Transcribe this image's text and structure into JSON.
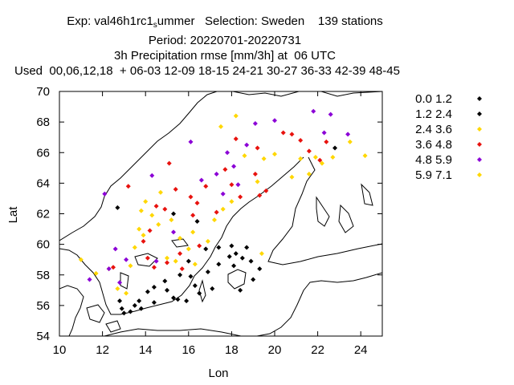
{
  "title": {
    "line1_prefix": "Exp: val46h1rc1",
    "line1_sub": "s",
    "line1_rest": "ummer   Selection: Sweden    139 stations",
    "line2": "Period: 20220701-20220731",
    "line3": "3h Precipitation rmse [mm/3h] at  06 UTC",
    "line4": "Used  00,06,12,18  + 06-03 12-09 18-15 24-21 30-27 36-33 42-39 48-45"
  },
  "chart_data": {
    "type": "scatter",
    "xlabel": "Lon",
    "ylabel": "Lat",
    "xlim": [
      10,
      25
    ],
    "ylim": [
      54,
      70
    ],
    "xticks": [
      10,
      12,
      14,
      16,
      18,
      20,
      22,
      24
    ],
    "yticks": [
      54,
      56,
      58,
      60,
      62,
      64,
      66,
      68,
      70
    ],
    "legend_position": "right",
    "background_map": "coastlines",
    "series": [
      {
        "name": "0.0 1.2",
        "color": "#000000",
        "points": [
          [
            12.7,
            62.4
          ],
          [
            12.8,
            56.3
          ],
          [
            12.9,
            55.8
          ],
          [
            13.0,
            55.5
          ],
          [
            13.3,
            55.6
          ],
          [
            13.5,
            56.0
          ],
          [
            13.7,
            56.3
          ],
          [
            13.8,
            55.8
          ],
          [
            14.1,
            56.9
          ],
          [
            14.4,
            57.2
          ],
          [
            14.4,
            56.2
          ],
          [
            14.9,
            57.6
          ],
          [
            15.0,
            57.0
          ],
          [
            15.3,
            56.5
          ],
          [
            15.5,
            56.4
          ],
          [
            15.6,
            58.0
          ],
          [
            15.9,
            56.3
          ],
          [
            16.0,
            58.9
          ],
          [
            16.1,
            57.9
          ],
          [
            16.3,
            57.3
          ],
          [
            16.5,
            56.8
          ],
          [
            16.8,
            59.7
          ],
          [
            16.9,
            58.2
          ],
          [
            17.1,
            57.1
          ],
          [
            17.4,
            59.8
          ],
          [
            17.4,
            58.7
          ],
          [
            17.9,
            59.2
          ],
          [
            18.0,
            59.9
          ],
          [
            18.1,
            58.6
          ],
          [
            18.2,
            59.4
          ],
          [
            18.4,
            57.0
          ],
          [
            18.5,
            59.1
          ],
          [
            18.7,
            59.8
          ],
          [
            18.9,
            58.9
          ],
          [
            19.0,
            57.7
          ],
          [
            19.3,
            58.4
          ],
          [
            22.8,
            66.3
          ],
          [
            15.3,
            62.0
          ],
          [
            16.4,
            61.5
          ]
        ]
      },
      {
        "name": "1.2 2.4",
        "color": "#000000",
        "points": []
      },
      {
        "name": "2.4 3.6",
        "color": "#ffd700",
        "points": [
          [
            11.0,
            59.0
          ],
          [
            11.7,
            58.1
          ],
          [
            12.3,
            58.4
          ],
          [
            12.7,
            57.1
          ],
          [
            13.1,
            56.8
          ],
          [
            13.3,
            58.6
          ],
          [
            13.5,
            59.8
          ],
          [
            13.7,
            61.0
          ],
          [
            13.8,
            62.2
          ],
          [
            13.9,
            60.6
          ],
          [
            14.0,
            62.8
          ],
          [
            14.3,
            61.9
          ],
          [
            14.6,
            61.3
          ],
          [
            14.7,
            63.4
          ],
          [
            15.0,
            59.1
          ],
          [
            15.2,
            61.6
          ],
          [
            15.4,
            58.9
          ],
          [
            15.6,
            60.4
          ],
          [
            16.0,
            59.7
          ],
          [
            16.2,
            60.8
          ],
          [
            16.3,
            58.7
          ],
          [
            16.9,
            60.2
          ],
          [
            17.2,
            61.6
          ],
          [
            17.6,
            62.3
          ],
          [
            18.0,
            62.8
          ],
          [
            17.5,
            67.7
          ],
          [
            18.2,
            68.4
          ],
          [
            19.4,
            59.4
          ],
          [
            20.0,
            65.9
          ],
          [
            20.8,
            64.4
          ],
          [
            21.2,
            65.6
          ],
          [
            21.6,
            64.6
          ],
          [
            21.9,
            65.7
          ],
          [
            22.2,
            65.3
          ],
          [
            22.7,
            65.7
          ],
          [
            23.5,
            66.7
          ],
          [
            24.2,
            65.8
          ]
        ]
      },
      {
        "name": "3.6 4.8",
        "color": "#e8120e",
        "points": [
          [
            12.5,
            58.5
          ],
          [
            13.2,
            63.8
          ],
          [
            13.9,
            60.2
          ],
          [
            14.1,
            59.1
          ],
          [
            14.2,
            60.9
          ],
          [
            14.4,
            58.5
          ],
          [
            14.5,
            62.5
          ],
          [
            14.9,
            62.3
          ],
          [
            15.0,
            58.8
          ],
          [
            15.1,
            65.3
          ],
          [
            15.4,
            63.6
          ],
          [
            15.6,
            59.4
          ],
          [
            15.7,
            58.4
          ],
          [
            16.1,
            63.1
          ],
          [
            16.2,
            61.9
          ],
          [
            16.4,
            62.7
          ],
          [
            16.5,
            59.9
          ],
          [
            16.8,
            63.8
          ],
          [
            17.3,
            62.1
          ],
          [
            17.7,
            64.9
          ],
          [
            18.0,
            63.9
          ],
          [
            18.2,
            66.9
          ],
          [
            18.4,
            63.1
          ],
          [
            19.1,
            64.6
          ],
          [
            19.2,
            66.3
          ],
          [
            19.3,
            63.2
          ],
          [
            19.6,
            63.5
          ],
          [
            20.4,
            67.3
          ],
          [
            20.8,
            67.2
          ],
          [
            21.2,
            66.8
          ],
          [
            21.6,
            66.1
          ],
          [
            22.1,
            65.5
          ],
          [
            22.4,
            66.7
          ]
        ]
      },
      {
        "name": "4.8 5.9",
        "color": "#8b00d6",
        "points": [
          [
            12.1,
            63.3
          ],
          [
            12.3,
            58.4
          ],
          [
            12.6,
            59.7
          ],
          [
            12.8,
            57.5
          ],
          [
            13.1,
            59.0
          ],
          [
            14.3,
            64.5
          ],
          [
            14.5,
            58.9
          ],
          [
            15.3,
            60.8
          ],
          [
            16.1,
            66.7
          ],
          [
            16.6,
            64.2
          ],
          [
            17.3,
            64.6
          ],
          [
            17.6,
            63.3
          ],
          [
            17.8,
            66.0
          ],
          [
            18.1,
            65.1
          ],
          [
            18.3,
            63.9
          ],
          [
            18.7,
            66.5
          ],
          [
            19.1,
            67.9
          ],
          [
            20.0,
            68.1
          ],
          [
            21.8,
            68.7
          ],
          [
            22.3,
            67.3
          ],
          [
            22.6,
            68.5
          ],
          [
            23.4,
            67.2
          ],
          [
            11.4,
            57.7
          ]
        ]
      },
      {
        "name": "5.9 7.1",
        "color": "#ffd700",
        "points": [
          [
            18.6,
            65.8
          ],
          [
            19.2,
            64.1
          ],
          [
            19.5,
            65.6
          ]
        ]
      }
    ]
  }
}
